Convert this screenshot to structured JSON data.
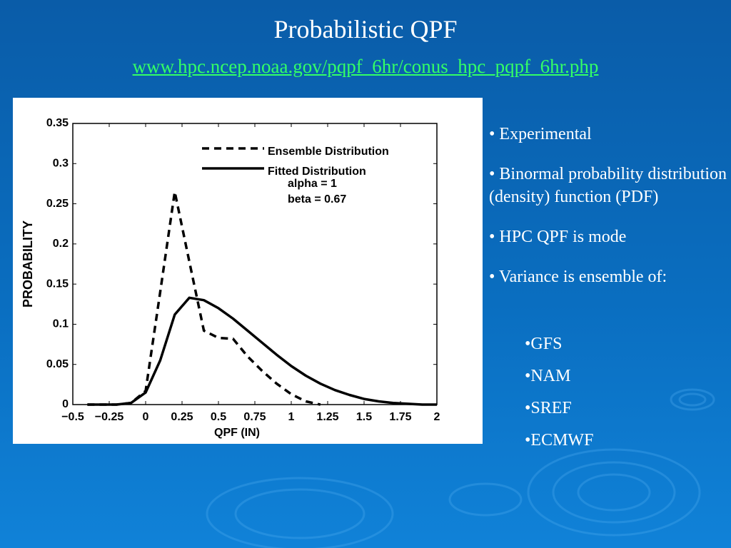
{
  "slide": {
    "title": "Probabilistic QPF",
    "link": "www.hpc.ncep.noaa.gov/pqpf_6hr/conus_hpc_pqpf_6hr.php",
    "bullets": [
      "Experimental",
      "Binormal probability distribution (density) function (PDF)",
      "HPC QPF is mode",
      "Variance is ensemble of:"
    ],
    "sub_bullets": [
      "GFS",
      "NAM",
      "SREF",
      "ECMWF"
    ]
  },
  "chart_data": {
    "type": "line",
    "x_label": "QPF (IN)",
    "y_label": "PROBABILITY",
    "x": [
      -0.4,
      -0.3,
      -0.2,
      -0.1,
      0,
      0.1,
      0.2,
      0.3,
      0.4,
      0.5,
      0.6,
      0.7,
      0.8,
      0.9,
      1.0,
      1.1,
      1.2,
      1.3,
      1.4,
      1.5,
      1.6,
      1.7,
      1.8,
      1.9,
      2.0
    ],
    "series": [
      {
        "name": "Ensemble Distribution",
        "color": "#000000",
        "dashed": true,
        "values": [
          0,
          0,
          0,
          0.002,
          0.017,
          0.14,
          0.265,
          0.178,
          0.092,
          0.083,
          0.082,
          0.06,
          0.042,
          0.026,
          0.013,
          0.004,
          0,
          null,
          null,
          null,
          null,
          null,
          null,
          null,
          null
        ]
      },
      {
        "name": "Fitted Distribution",
        "color": "#000000",
        "dashed": false,
        "values": [
          0,
          0,
          0,
          0.002,
          0.015,
          0.055,
          0.112,
          0.133,
          0.13,
          0.12,
          0.107,
          0.092,
          0.077,
          0.062,
          0.048,
          0.036,
          0.026,
          0.018,
          0.012,
          0.007,
          0.004,
          0.002,
          0.001,
          0,
          0
        ]
      }
    ],
    "annotations": [
      "alpha = 1",
      "beta = 0.67"
    ],
    "xlim": [
      -0.5,
      2
    ],
    "ylim": [
      0,
      0.35
    ],
    "xticks": [
      {
        "value": -0.5,
        "label": "−0.5"
      },
      {
        "value": -0.25,
        "label": "−0.25"
      },
      0,
      0.25,
      0.5,
      0.75,
      1,
      1.25,
      1.5,
      1.75,
      2
    ],
    "yticks": [
      0,
      0.05,
      0.1,
      0.15,
      0.2,
      0.25,
      0.3,
      0.35
    ]
  }
}
